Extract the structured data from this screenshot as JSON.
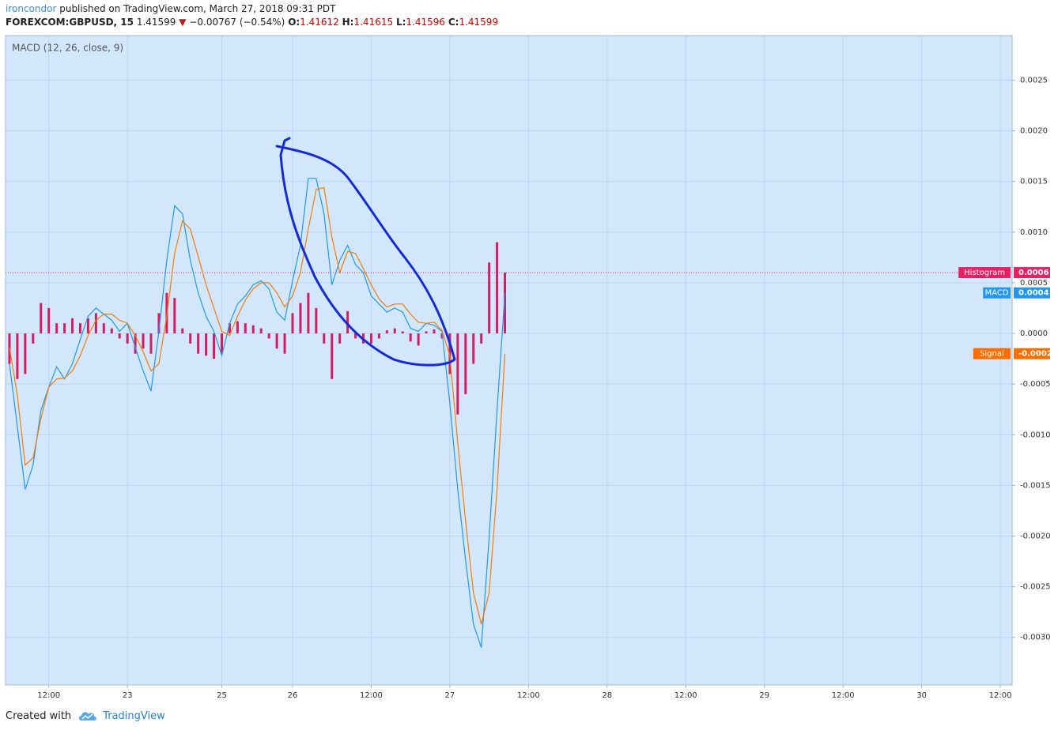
{
  "header": {
    "author": "ironcondor",
    "published": "published on TradingView.com, March 27, 2018 09:31 PDT",
    "symbol": "FOREXCOM:GBPUSD, 15",
    "last": "1.41599",
    "arrow": "▼",
    "change": "−0.00767 (−0.54%)",
    "open_label": "O:",
    "open": "1.41612",
    "high_label": "H:",
    "high": "1.41615",
    "low_label": "L:",
    "low": "1.41596",
    "close_label": "C:",
    "close": "1.41599"
  },
  "footer": {
    "created": "Created with",
    "brand": "TradingView"
  },
  "chart_data": {
    "type": "line",
    "title": "MACD (12, 26, close, 9)",
    "categories": [
      null,
      null,
      null,
      null,
      null,
      "12:00",
      null,
      null,
      null,
      null,
      null,
      null,
      null,
      null,
      null,
      "23",
      null,
      null,
      null,
      null,
      null,
      null,
      null,
      null,
      null,
      null,
      null,
      "25",
      null,
      null,
      null,
      null,
      null,
      null,
      null,
      null,
      "26",
      null,
      null,
      null,
      null,
      null,
      null,
      null,
      null,
      null,
      "12:00",
      null,
      null,
      null,
      null,
      null,
      null,
      null,
      null,
      null,
      "27",
      null,
      null,
      null,
      null,
      null,
      null,
      null,
      null,
      null,
      "12:00",
      null,
      null,
      null,
      null,
      null,
      null,
      null,
      null,
      null,
      "28",
      null,
      null,
      null,
      null,
      null,
      null,
      null,
      null,
      null,
      "12:00",
      null,
      null,
      null,
      null,
      null,
      null,
      null,
      null,
      null,
      "29",
      null,
      null,
      null,
      null,
      null,
      null,
      null,
      null,
      null,
      "12:00",
      null,
      null,
      null,
      null,
      null,
      null,
      null,
      null,
      null,
      "30",
      null,
      null,
      null,
      null,
      null,
      null,
      null,
      null,
      null,
      "12:00",
      null
    ],
    "ylim": [
      -0.00347,
      0.00294
    ],
    "yticks": [
      0.0025,
      {
        "value": 0.002,
        "label": "0.0020"
      },
      0.0015,
      {
        "value": 0.001,
        "label": "0.0010"
      },
      0.0005,
      {
        "value": 0,
        "label": "0.0000"
      },
      -0.0005,
      {
        "value": -0.001,
        "label": "-0.0010"
      },
      -0.0015,
      {
        "value": -0.002,
        "label": "-0.0020"
      },
      -0.0025,
      {
        "value": -0.003,
        "label": "-0.0030"
      }
    ],
    "grid": true,
    "series": [
      {
        "name": "Histogram",
        "type": "bar",
        "color": "#d81b60",
        "label_color": "#e91e63",
        "price_line": true,
        "last_label": "0.0006",
        "values": [
          -0.0003,
          -0.00045,
          -0.0004,
          -0.0001,
          0.0003,
          0.00025,
          0.0001,
          0.0001,
          0.00015,
          0.0001,
          0.00015,
          0.0002,
          0.0001,
          5e-05,
          -5e-05,
          -0.0001,
          -0.0002,
          -0.00015,
          -0.0002,
          0.0002,
          0.0004,
          0.00035,
          5e-05,
          -0.0001,
          -0.0002,
          -0.00022,
          -0.00025,
          -0.0002,
          0.0001,
          0.00012,
          0.0001,
          8e-05,
          5e-05,
          -5e-05,
          -0.00015,
          -0.0002,
          0.0002,
          0.0003,
          0.0004,
          0.00025,
          -0.0001,
          -0.00045,
          -0.0001,
          0.00022,
          -5e-05,
          -0.0001,
          -0.0001,
          -5e-05,
          3e-05,
          5e-05,
          2e-05,
          -8e-05,
          -0.00012,
          2e-05,
          4e-05,
          -5e-05,
          -0.0004,
          -0.0008,
          -0.0006,
          -0.0003,
          -0.0001,
          0.0007,
          0.0009,
          0.0006,
          null,
          null,
          null,
          null,
          null,
          null,
          null,
          null,
          null,
          null,
          null,
          null,
          null,
          null,
          null,
          null,
          null,
          null,
          null,
          null,
          null,
          null,
          null,
          null,
          null,
          null,
          null,
          null,
          null,
          null,
          null,
          null,
          null,
          null,
          null,
          null,
          null,
          null,
          null,
          null,
          null,
          null,
          null,
          null,
          null,
          null,
          null,
          null,
          null,
          null,
          null,
          null,
          null,
          null,
          null,
          null,
          null,
          null,
          null,
          null,
          null,
          null,
          null,
          null
        ]
      },
      {
        "name": "MACD",
        "type": "line",
        "color": "#2196f3",
        "label_color": "#2196f3",
        "last_label": "0.0004",
        "values": [
          -0.0003,
          -0.00092,
          -0.00154,
          -0.0013,
          -0.00076,
          -0.00053,
          -0.00033,
          -0.00045,
          -0.0003,
          -6e-05,
          0.00017,
          0.00025,
          0.00019,
          0.00013,
          2e-05,
          0.0001,
          -0.00014,
          -0.00037,
          -0.00057,
          2e-05,
          0.00072,
          0.00126,
          0.00118,
          0.00072,
          0.0004,
          0.00017,
          2e-05,
          -0.00022,
          0.0001,
          0.00029,
          0.00037,
          0.00048,
          0.00052,
          0.00044,
          0.00021,
          0.00013,
          0.00052,
          0.00087,
          0.00153,
          0.00153,
          0.00118,
          0.00048,
          0.00072,
          0.00087,
          0.00068,
          0.0006,
          0.00037,
          0.00029,
          0.00021,
          0.00025,
          0.00021,
          5e-05,
          2e-05,
          0.0001,
          8e-05,
          2e-05,
          -0.00069,
          -0.00154,
          -0.00224,
          -0.00287,
          -0.0031,
          -0.00201,
          -0.00076,
          0.0004,
          null,
          null,
          null,
          null,
          null,
          null,
          null,
          null,
          null,
          null,
          null,
          null,
          null,
          null,
          null,
          null,
          null,
          null,
          null,
          null,
          null,
          null,
          null,
          null,
          null,
          null,
          null,
          null,
          null,
          null,
          null,
          null,
          null,
          null,
          null,
          null,
          null,
          null,
          null,
          null,
          null,
          null,
          null,
          null,
          null,
          null,
          null,
          null,
          null,
          null,
          null,
          null,
          null,
          null,
          null,
          null,
          null,
          null,
          null,
          null,
          null,
          null,
          null,
          null
        ]
      },
      {
        "name": "Signal",
        "type": "line",
        "color": "#f57c00",
        "label_color": "#ff6d00",
        "last_label": "-0.0002",
        "values": [
          -0.00014,
          -0.00061,
          -0.0013,
          -0.00123,
          -0.00084,
          -0.00053,
          -0.00045,
          -0.00044,
          -0.00037,
          -0.00022,
          -2e-05,
          0.00013,
          0.00019,
          0.00019,
          0.00013,
          0.0001,
          -2e-05,
          -0.00018,
          -0.00037,
          -0.0003,
          0.00017,
          0.00079,
          0.00111,
          0.00103,
          0.00076,
          0.00048,
          0.00025,
          2e-05,
          -2e-05,
          0.00017,
          0.00033,
          0.00044,
          0.0005,
          0.0005,
          0.0004,
          0.00026,
          0.00037,
          0.0006,
          0.00103,
          0.00142,
          0.00144,
          0.00095,
          0.0006,
          0.00081,
          0.00079,
          0.00064,
          0.00048,
          0.00034,
          0.00026,
          0.00029,
          0.00029,
          0.00019,
          0.00011,
          0.0001,
          0.00011,
          3e-05,
          -0.00022,
          -0.00108,
          -0.00185,
          -0.00256,
          -0.00287,
          -0.00256,
          -0.00154,
          -0.0002,
          null,
          null,
          null,
          null,
          null,
          null,
          null,
          null,
          null,
          null,
          null,
          null,
          null,
          null,
          null,
          null,
          null,
          null,
          null,
          null,
          null,
          null,
          null,
          null,
          null,
          null,
          null,
          null,
          null,
          null,
          null,
          null,
          null,
          null,
          null,
          null,
          null,
          null,
          null,
          null,
          null,
          null,
          null,
          null,
          null,
          null,
          null,
          null,
          null,
          null,
          null,
          null,
          null,
          null,
          null,
          null,
          null,
          null,
          null,
          null,
          null,
          null,
          null,
          null
        ]
      }
    ]
  }
}
